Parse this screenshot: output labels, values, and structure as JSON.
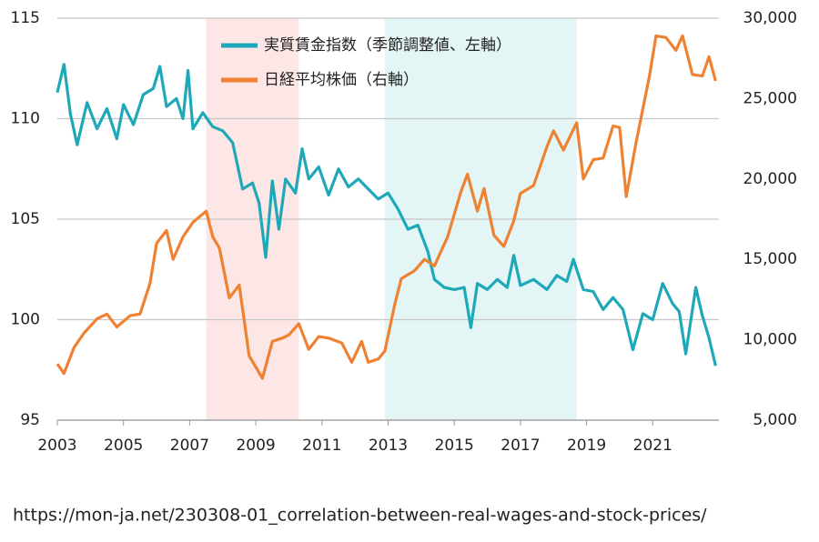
{
  "chart_data": {
    "type": "line",
    "xlim": [
      2003,
      2023
    ],
    "xticks": [
      2003,
      2005,
      2007,
      2009,
      2011,
      2013,
      2015,
      2017,
      2019,
      2021
    ],
    "ylim": [
      95,
      115
    ],
    "yticks": [
      95,
      100,
      105,
      110,
      115
    ],
    "y2lim": [
      5000,
      30000
    ],
    "y2ticks": [
      {
        "value": 5000,
        "label": "5,000"
      },
      {
        "value": 10000,
        "label": "10,000"
      },
      {
        "value": 15000,
        "label": "15,000"
      },
      {
        "value": 20000,
        "label": "20,000"
      },
      {
        "value": 25000,
        "label": "25,000"
      },
      {
        "value": 30000,
        "label": "30,000"
      }
    ],
    "grid": true,
    "shaded_ranges": [
      {
        "x0": 2007.5,
        "x1": 2010.3,
        "color": "#fde6e6"
      },
      {
        "x0": 2012.9,
        "x1": 2018.7,
        "color": "#e3f5f5"
      }
    ],
    "series": [
      {
        "name": "実質賃金指数（季節調整値、左軸）",
        "color": "#1fa9b8",
        "x": [
          2003.0,
          2003.2,
          2003.4,
          2003.6,
          2003.9,
          2004.2,
          2004.5,
          2004.8,
          2005.0,
          2005.3,
          2005.6,
          2005.9,
          2006.1,
          2006.3,
          2006.6,
          2006.8,
          2006.95,
          2007.1,
          2007.4,
          2007.7,
          2008.0,
          2008.3,
          2008.6,
          2008.9,
          2009.1,
          2009.3,
          2009.5,
          2009.7,
          2009.9,
          2010.2,
          2010.4,
          2010.6,
          2010.9,
          2011.2,
          2011.5,
          2011.8,
          2012.1,
          2012.4,
          2012.7,
          2013.0,
          2013.3,
          2013.6,
          2013.9,
          2014.2,
          2014.4,
          2014.7,
          2015.0,
          2015.3,
          2015.5,
          2015.7,
          2016.0,
          2016.3,
          2016.6,
          2016.8,
          2017.0,
          2017.4,
          2017.8,
          2018.1,
          2018.4,
          2018.6,
          2018.9,
          2019.2,
          2019.5,
          2019.8,
          2020.1,
          2020.4,
          2020.7,
          2021.0,
          2021.3,
          2021.6,
          2021.8,
          2022.0,
          2022.3,
          2022.5,
          2022.7,
          2022.9
        ],
        "values": [
          111.3,
          112.7,
          110.2,
          108.7,
          110.8,
          109.5,
          110.5,
          109.0,
          110.7,
          109.7,
          111.2,
          111.5,
          112.6,
          110.6,
          111.0,
          110.0,
          112.4,
          109.5,
          110.3,
          109.6,
          109.4,
          108.8,
          106.5,
          106.8,
          105.8,
          103.1,
          106.9,
          104.5,
          107.0,
          106.3,
          108.5,
          107.0,
          107.6,
          106.2,
          107.5,
          106.6,
          107.0,
          106.5,
          106.0,
          106.3,
          105.5,
          104.5,
          104.7,
          103.4,
          102.0,
          101.6,
          101.5,
          101.6,
          99.6,
          101.8,
          101.5,
          102.0,
          101.6,
          103.2,
          101.7,
          102.0,
          101.5,
          102.2,
          101.9,
          103.0,
          101.5,
          101.4,
          100.5,
          101.1,
          100.5,
          98.5,
          100.3,
          100.0,
          101.8,
          100.8,
          100.4,
          98.3,
          101.6,
          100.2,
          99.1,
          97.7
        ]
      },
      {
        "name": "日経平均株価（右軸）",
        "color": "#ef8232",
        "axis": "y2",
        "x": [
          2003.0,
          2003.2,
          2003.5,
          2003.8,
          2004.2,
          2004.5,
          2004.8,
          2005.2,
          2005.5,
          2005.8,
          2006.0,
          2006.3,
          2006.5,
          2006.8,
          2007.1,
          2007.5,
          2007.7,
          2007.9,
          2008.2,
          2008.5,
          2008.8,
          2009.0,
          2009.2,
          2009.5,
          2009.8,
          2010.0,
          2010.3,
          2010.6,
          2010.9,
          2011.2,
          2011.6,
          2011.9,
          2012.2,
          2012.4,
          2012.7,
          2012.9,
          2013.2,
          2013.4,
          2013.8,
          2014.1,
          2014.4,
          2014.8,
          2015.2,
          2015.4,
          2015.7,
          2015.9,
          2016.2,
          2016.5,
          2016.8,
          2017.0,
          2017.4,
          2017.8,
          2018.0,
          2018.3,
          2018.7,
          2018.9,
          2019.2,
          2019.5,
          2019.8,
          2020.0,
          2020.2,
          2020.5,
          2020.9,
          2021.1,
          2021.4,
          2021.7,
          2021.9,
          2022.2,
          2022.5,
          2022.7,
          2022.9
        ],
        "values": [
          8500,
          7900,
          9500,
          10400,
          11300,
          11600,
          10800,
          11500,
          11600,
          13500,
          16000,
          16800,
          15000,
          16400,
          17300,
          18000,
          16400,
          15700,
          12600,
          13400,
          9000,
          8300,
          7600,
          9900,
          10100,
          10300,
          11000,
          9400,
          10200,
          10100,
          9800,
          8600,
          9900,
          8600,
          8800,
          9300,
          12200,
          13800,
          14300,
          15000,
          14600,
          16400,
          19200,
          20300,
          18000,
          19400,
          16500,
          15800,
          17400,
          19100,
          19600,
          22000,
          23000,
          21800,
          23500,
          20000,
          21200,
          21300,
          23300,
          23200,
          18900,
          22300,
          26400,
          28900,
          28800,
          28000,
          28900,
          26500,
          26400,
          27600,
          26100
        ]
      }
    ],
    "source": "https://mon-ja.net/230308-01_correlation-between-real-wages-and-stock-prices/"
  }
}
